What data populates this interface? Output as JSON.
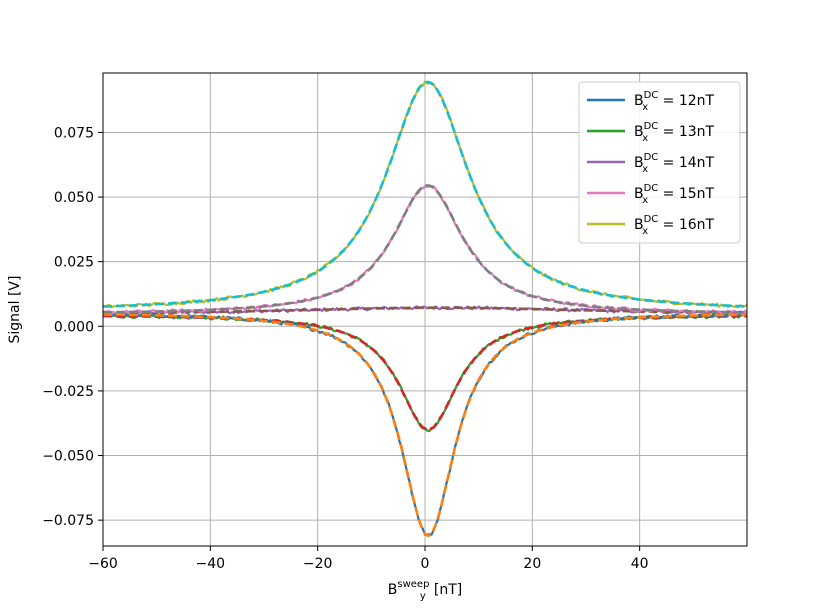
{
  "chart_data": {
    "type": "line",
    "title": "",
    "xlabel": {
      "base": "B",
      "sub": "y",
      "sup": "sweep",
      "unit": " [nT]"
    },
    "ylabel": "Signal [V]",
    "xlim": [
      -60,
      60
    ],
    "ylim": [
      -0.085,
      0.098
    ],
    "xticks": [
      -60,
      -40,
      -20,
      0,
      20,
      40
    ],
    "xtick_labels": [
      "−60",
      "−40",
      "−20",
      "0",
      "20",
      "40"
    ],
    "yticks": [
      -0.075,
      -0.05,
      -0.025,
      0.0,
      0.025,
      0.05,
      0.075
    ],
    "ytick_labels": [
      "−0.075",
      "−0.050",
      "−0.025",
      "0.000",
      "0.025",
      "0.050",
      "0.075"
    ],
    "grid": true,
    "legend_position": "top-right",
    "series": [
      {
        "name": "12nT",
        "legend_label": {
          "base": "B",
          "sub": "x",
          "sup": "DC",
          "value": " = 12nT"
        },
        "color": "#1f77b4",
        "fit_color": "#ff7f0e",
        "baseline": 0.0055,
        "amplitude": -0.0865,
        "center": 0.6,
        "width": 6.2,
        "noise": 0.0006
      },
      {
        "name": "13nT",
        "legend_label": {
          "base": "B",
          "sub": "x",
          "sup": "DC",
          "value": " = 13nT"
        },
        "color": "#2ca02c",
        "fit_color": "#d62728",
        "baseline": 0.0045,
        "amplitude": -0.0445,
        "center": 0.6,
        "width": 6.8,
        "noise": 0.0006
      },
      {
        "name": "14nT",
        "legend_label": {
          "base": "B",
          "sub": "x",
          "sup": "DC",
          "value": " = 14nT"
        },
        "color": "#9467bd",
        "fit_color": "#8c564b",
        "baseline": 0.0045,
        "amplitude": 0.0027,
        "center": 3.0,
        "width": 35.0,
        "noise": 0.0006
      },
      {
        "name": "15nT",
        "legend_label": {
          "base": "B",
          "sub": "x",
          "sup": "DC",
          "value": " = 15nT"
        },
        "color": "#e377c2",
        "fit_color": "#7f7f7f",
        "baseline": 0.0045,
        "amplitude": 0.05,
        "center": 0.5,
        "width": 8.0,
        "noise": 0.0006
      },
      {
        "name": "16nT",
        "legend_label": {
          "base": "B",
          "sub": "x",
          "sup": "DC",
          "value": " = 16nT"
        },
        "color": "#bcbd22",
        "fit_color": "#17becf",
        "baseline": 0.0055,
        "amplitude": 0.089,
        "center": 0.5,
        "width": 9.5,
        "noise": 0.0006
      }
    ]
  }
}
